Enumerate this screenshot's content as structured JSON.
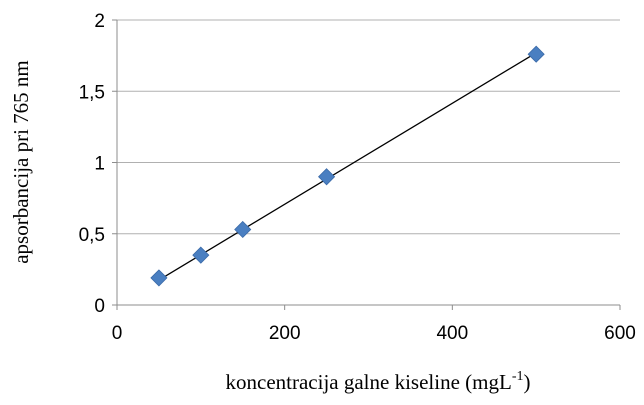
{
  "chart_data": {
    "type": "scatter",
    "title": "",
    "xlabel": "koncentracija galne kiseline (mgL",
    "xlabel_superscript": "-1",
    "xlabel_suffix": ")",
    "ylabel": "apsorbancija pri 765 nm",
    "xlim": [
      0,
      600
    ],
    "ylim": [
      0,
      2
    ],
    "x_ticks": [
      0,
      200,
      400,
      600
    ],
    "x_tick_labels": [
      "0",
      "200",
      "400",
      "600"
    ],
    "y_ticks": [
      0,
      0.5,
      1,
      1.5,
      2
    ],
    "y_tick_labels": [
      "0",
      "0,5",
      "1",
      "1,5",
      "2"
    ],
    "grid": "horizontal",
    "legend": "none",
    "series": [
      {
        "x": [
          50,
          100,
          150,
          250,
          500
        ],
        "values": [
          0.19,
          0.35,
          0.53,
          0.9,
          1.76
        ],
        "marker": "diamond",
        "color": "#4a7fc1"
      }
    ],
    "trendline": {
      "type": "linear",
      "x": [
        50,
        500
      ],
      "values": [
        0.175,
        1.77
      ],
      "color": "#000000"
    }
  }
}
